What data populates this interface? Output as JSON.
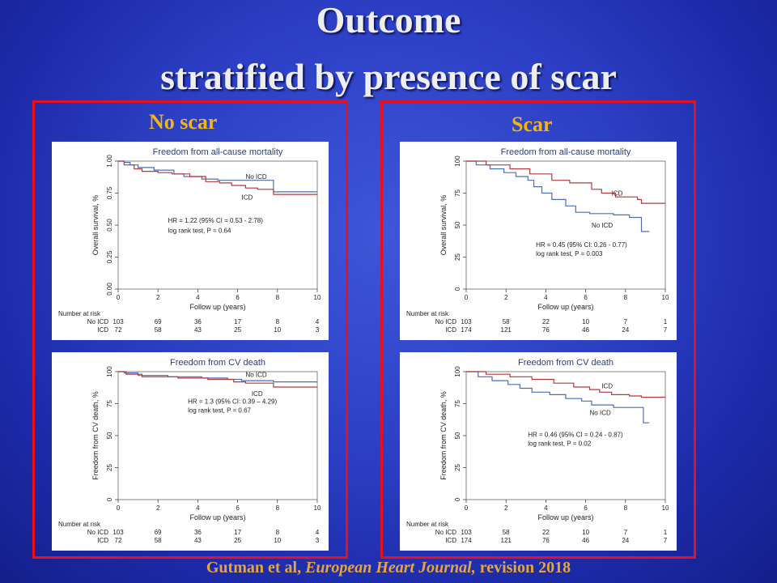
{
  "slide": {
    "title_line1": "Outcome",
    "title_line2": "stratified by presence of scar",
    "citation_pre": "Gutman et al, ",
    "citation_journal": "European Heart Journal,",
    "citation_post": " revision 2018"
  },
  "groups": {
    "left_label": "No scar",
    "right_label": "Scar"
  },
  "colors": {
    "no_icd": "#4a6fb5",
    "icd": "#b23a3a",
    "border": "#e8101e",
    "label": "#f2b515"
  },
  "chart_data": [
    {
      "type": "line",
      "title": "Freedom from all-cause mortality",
      "xlabel": "Follow up (years)",
      "ylabel": "Overall survival, %",
      "xlim": [
        0,
        10
      ],
      "ylim": [
        0,
        1
      ],
      "x_ticks": [
        "0",
        "2",
        "4",
        "6",
        "8",
        "10"
      ],
      "y_ticks": [
        "0.00",
        "0.25",
        "0.50",
        "0.75",
        "1.00"
      ],
      "y_tick_values": [
        0,
        0.25,
        0.5,
        0.75,
        1.0
      ],
      "series": [
        {
          "name": "No ICD",
          "color": "#4a6fb5",
          "points": [
            [
              0,
              1.0
            ],
            [
              0.3,
              0.99
            ],
            [
              0.6,
              0.97
            ],
            [
              1.0,
              0.95
            ],
            [
              1.8,
              0.93
            ],
            [
              2.8,
              0.9
            ],
            [
              3.3,
              0.88
            ],
            [
              4.2,
              0.86
            ],
            [
              5.0,
              0.85
            ],
            [
              5.6,
              0.85
            ],
            [
              6.2,
              0.85
            ],
            [
              7.2,
              0.85
            ],
            [
              7.8,
              0.85
            ],
            [
              7.8,
              0.76
            ],
            [
              10,
              0.76
            ]
          ]
        },
        {
          "name": "ICD",
          "color": "#b23a3a",
          "points": [
            [
              0,
              1.0
            ],
            [
              0.3,
              0.97
            ],
            [
              0.8,
              0.94
            ],
            [
              1.2,
              0.92
            ],
            [
              2.0,
              0.91
            ],
            [
              2.7,
              0.9
            ],
            [
              3.6,
              0.88
            ],
            [
              4.4,
              0.84
            ],
            [
              5.1,
              0.83
            ],
            [
              5.7,
              0.81
            ],
            [
              6.4,
              0.79
            ],
            [
              7.0,
              0.78
            ],
            [
              7.8,
              0.74
            ],
            [
              10,
              0.74
            ]
          ]
        }
      ],
      "annotations": [
        {
          "text": "No ICD",
          "x": 6.4,
          "y": 0.86
        },
        {
          "text": "ICD",
          "x": 6.2,
          "y": 0.7
        },
        {
          "text": "HR = 1.22 (95% CI = 0.53 - 2.78)",
          "x": 2.5,
          "y": 0.52
        },
        {
          "text": "log rank test, P = 0.64",
          "x": 2.5,
          "y": 0.44
        }
      ],
      "risk_table": {
        "header": "Number at risk",
        "rows": [
          {
            "label": "No ICD",
            "values": [
              "103",
              "69",
              "36",
              "17",
              "8",
              "4"
            ]
          },
          {
            "label": "ICD",
            "values": [
              "72",
              "58",
              "43",
              "25",
              "10",
              "3"
            ]
          }
        ]
      }
    },
    {
      "type": "line",
      "title": "Freedom from CV death",
      "xlabel": "Follow up (years)",
      "ylabel": "Freedom from CV death, %",
      "xlim": [
        0,
        10
      ],
      "ylim": [
        0,
        100
      ],
      "x_ticks": [
        "0",
        "2",
        "4",
        "6",
        "8",
        "10"
      ],
      "y_ticks": [
        "0",
        "25",
        "50",
        "75",
        "100"
      ],
      "y_tick_values": [
        0,
        25,
        50,
        75,
        100
      ],
      "series": [
        {
          "name": "No ICD",
          "color": "#4a6fb5",
          "points": [
            [
              0,
              100
            ],
            [
              0.3,
              99
            ],
            [
              1.0,
              97
            ],
            [
              2.5,
              96
            ],
            [
              4.2,
              95
            ],
            [
              5.5,
              94
            ],
            [
              6.2,
              93
            ],
            [
              7.8,
              92
            ],
            [
              10,
              92
            ]
          ]
        },
        {
          "name": "ICD",
          "color": "#b23a3a",
          "points": [
            [
              0,
              100
            ],
            [
              0.4,
              98
            ],
            [
              1.2,
              96
            ],
            [
              3.0,
              95
            ],
            [
              4.5,
              94
            ],
            [
              5.8,
              92
            ],
            [
              6.4,
              91
            ],
            [
              7.8,
              88
            ],
            [
              10,
              88
            ]
          ]
        }
      ],
      "annotations": [
        {
          "text": "No ICD",
          "x": 6.4,
          "y": 96
        },
        {
          "text": "ICD",
          "x": 6.7,
          "y": 81
        },
        {
          "text": "HR = 1.3 (95% CI: 0.39 – 4.29)",
          "x": 3.5,
          "y": 75
        },
        {
          "text": "log rank test, P = 0.67",
          "x": 3.5,
          "y": 68
        }
      ],
      "risk_table": {
        "header": "Number at risk",
        "rows": [
          {
            "label": "No ICD",
            "values": [
              "103",
              "69",
              "36",
              "17",
              "8",
              "4"
            ]
          },
          {
            "label": "ICD",
            "values": [
              "72",
              "58",
              "43",
              "25",
              "10",
              "3"
            ]
          }
        ]
      }
    },
    {
      "type": "line",
      "title": "Freedom from all-cause mortality",
      "xlabel": "Follow up (years)",
      "ylabel": "Overall survival, %",
      "xlim": [
        0,
        10
      ],
      "ylim": [
        0,
        100
      ],
      "x_ticks": [
        "0",
        "2",
        "4",
        "6",
        "8",
        "10"
      ],
      "y_ticks": [
        "0",
        "25",
        "50",
        "75",
        "100"
      ],
      "y_tick_values": [
        0,
        25,
        50,
        75,
        100
      ],
      "series": [
        {
          "name": "No ICD",
          "color": "#4a6fb5",
          "points": [
            [
              0,
              100
            ],
            [
              0.5,
              97
            ],
            [
              1.2,
              94
            ],
            [
              1.9,
              91
            ],
            [
              2.5,
              88
            ],
            [
              3.1,
              85
            ],
            [
              3.4,
              80
            ],
            [
              3.8,
              75
            ],
            [
              4.3,
              70
            ],
            [
              5.0,
              65
            ],
            [
              5.5,
              60
            ],
            [
              6.2,
              59
            ],
            [
              7.4,
              58
            ],
            [
              8.2,
              56
            ],
            [
              8.8,
              54
            ],
            [
              8.8,
              45
            ],
            [
              9.2,
              45
            ]
          ]
        },
        {
          "name": "ICD",
          "color": "#b23a3a",
          "points": [
            [
              0,
              100
            ],
            [
              1.0,
              97
            ],
            [
              2.2,
              94
            ],
            [
              3.2,
              90
            ],
            [
              4.3,
              85
            ],
            [
              5.2,
              83
            ],
            [
              6.3,
              78
            ],
            [
              6.8,
              75
            ],
            [
              7.5,
              72
            ],
            [
              8.6,
              70
            ],
            [
              8.8,
              67
            ],
            [
              10,
              67
            ]
          ]
        }
      ],
      "annotations": [
        {
          "text": "ICD",
          "x": 7.3,
          "y": 73
        },
        {
          "text": "No ICD",
          "x": 6.3,
          "y": 48
        },
        {
          "text": "HR = 0.45 (95% CI: 0.26 - 0.77)",
          "x": 3.5,
          "y": 33
        },
        {
          "text": "log rank test, P = 0.003",
          "x": 3.5,
          "y": 26
        }
      ],
      "risk_table": {
        "header": "Number at risk",
        "rows": [
          {
            "label": "No ICD",
            "values": [
              "103",
              "58",
              "22",
              "10",
              "7",
              "1"
            ]
          },
          {
            "label": "ICD",
            "values": [
              "174",
              "121",
              "76",
              "46",
              "24",
              "7"
            ]
          }
        ]
      }
    },
    {
      "type": "line",
      "title": "Freedom from CV death",
      "xlabel": "Follow up (years)",
      "ylabel": "Freedom from CV death, %",
      "xlim": [
        0,
        10
      ],
      "ylim": [
        0,
        100
      ],
      "x_ticks": [
        "0",
        "2",
        "4",
        "6",
        "8",
        "10"
      ],
      "y_ticks": [
        "0",
        "25",
        "50",
        "75",
        "100"
      ],
      "y_tick_values": [
        0,
        25,
        50,
        75,
        100
      ],
      "series": [
        {
          "name": "No ICD",
          "color": "#4a6fb5",
          "points": [
            [
              0,
              100
            ],
            [
              0.6,
              96
            ],
            [
              1.3,
              93
            ],
            [
              2.1,
              90
            ],
            [
              2.7,
              87
            ],
            [
              3.3,
              84
            ],
            [
              4.2,
              82
            ],
            [
              5.0,
              79
            ],
            [
              5.8,
              77
            ],
            [
              6.3,
              74
            ],
            [
              7.4,
              72
            ],
            [
              8.2,
              72
            ],
            [
              8.9,
              72
            ],
            [
              8.9,
              60
            ],
            [
              9.2,
              60
            ]
          ]
        },
        {
          "name": "ICD",
          "color": "#b23a3a",
          "points": [
            [
              0,
              100
            ],
            [
              1.0,
              98
            ],
            [
              2.2,
              96
            ],
            [
              3.3,
              94
            ],
            [
              4.4,
              91
            ],
            [
              5.4,
              88
            ],
            [
              6.2,
              86
            ],
            [
              6.7,
              84
            ],
            [
              7.3,
              82
            ],
            [
              8.2,
              81
            ],
            [
              8.8,
              80
            ],
            [
              10,
              80
            ]
          ]
        }
      ],
      "annotations": [
        {
          "text": "ICD",
          "x": 6.8,
          "y": 87
        },
        {
          "text": "No ICD",
          "x": 6.2,
          "y": 66
        },
        {
          "text": "HR = 0.46 (95% CI = 0.24 - 0.87)",
          "x": 3.1,
          "y": 49
        },
        {
          "text": "log rank test, P = 0.02",
          "x": 3.1,
          "y": 42
        }
      ],
      "risk_table": {
        "header": "Number at risk",
        "rows": [
          {
            "label": "No ICD",
            "values": [
              "103",
              "58",
              "22",
              "10",
              "7",
              "1"
            ]
          },
          {
            "label": "ICD",
            "values": [
              "174",
              "121",
              "76",
              "46",
              "24",
              "7"
            ]
          }
        ]
      }
    }
  ]
}
